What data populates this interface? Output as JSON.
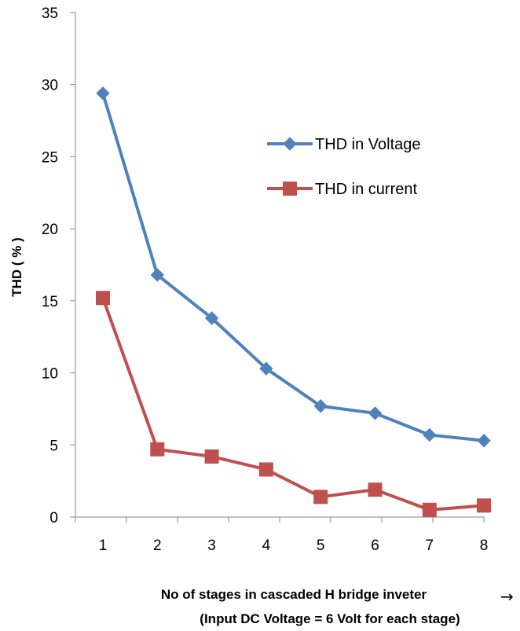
{
  "chart_data": {
    "type": "line",
    "x": [
      1,
      2,
      3,
      4,
      5,
      6,
      7,
      8
    ],
    "xticks": [
      "1",
      "2",
      "3",
      "4",
      "5",
      "6",
      "7",
      "8"
    ],
    "yticks": [
      "0",
      "5",
      "10",
      "15",
      "20",
      "25",
      "30",
      "35"
    ],
    "ylim": [
      0,
      35
    ],
    "ylabel": "THD ( % )",
    "xlabel": "No of stages in cascaded H bridge inveter",
    "xlabel_line2": "(Input DC Voltage = 6 Volt for each stage)",
    "x_arrow": "→",
    "grid": false,
    "legend_position": "upper-right inside plot",
    "series": [
      {
        "name": "THD in Voltage",
        "marker": "diamond",
        "color": "#4f81bd",
        "values": [
          29.4,
          16.8,
          13.8,
          10.3,
          7.7,
          7.2,
          5.7,
          5.3
        ]
      },
      {
        "name": "THD  in current",
        "marker": "square",
        "color": "#c0504d",
        "values": [
          15.2,
          4.7,
          4.2,
          3.3,
          1.4,
          1.9,
          0.5,
          0.8
        ]
      }
    ]
  }
}
